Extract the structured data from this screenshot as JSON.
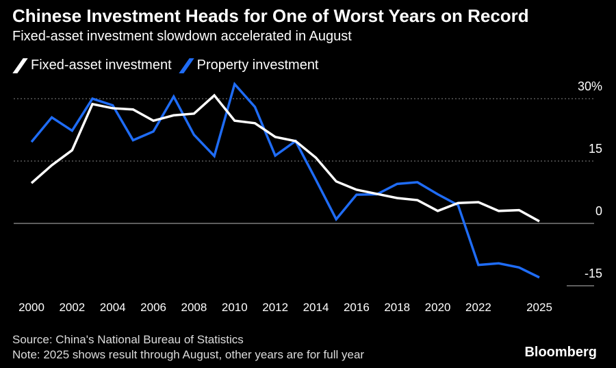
{
  "title": "Chinese Investment Heads for One of Worst Years on Record",
  "subtitle": "Fixed-asset investment slowdown accelerated in August",
  "source": "Source: China's National Bureau of Statistics",
  "note": "Note: 2025 shows result through August, other years are for full year",
  "logo": "Bloomberg",
  "chart_data": {
    "type": "line",
    "title": "Chinese Investment Heads for One of Worst Years on Record",
    "xlabel": "",
    "ylabel": "",
    "ylim": [
      -15,
      30
    ],
    "y_ticks": [
      {
        "v": 30,
        "label": "30%"
      },
      {
        "v": 15,
        "label": "15"
      },
      {
        "v": 0,
        "label": "0"
      },
      {
        "v": -15,
        "label": "-15"
      }
    ],
    "x_ticks": [
      "2000",
      "2002",
      "2004",
      "2006",
      "2008",
      "2010",
      "2012",
      "2014",
      "2016",
      "2018",
      "2020",
      "2022",
      "2025"
    ],
    "x": [
      2000,
      2001,
      2002,
      2003,
      2004,
      2005,
      2006,
      2007,
      2008,
      2009,
      2010,
      2011,
      2012,
      2013,
      2014,
      2015,
      2016,
      2017,
      2018,
      2019,
      2020,
      2021,
      2022,
      2023,
      2024,
      2025
    ],
    "legend_position": "top-left",
    "series": [
      {
        "name": "Fixed-asset investment",
        "color": "#ffffff",
        "values": [
          9.7,
          14.0,
          17.6,
          28.7,
          27.7,
          27.4,
          24.7,
          26.0,
          26.4,
          30.8,
          24.7,
          24.1,
          20.8,
          19.8,
          15.8,
          10.1,
          8.1,
          7.1,
          6.1,
          5.6,
          3.0,
          4.9,
          5.1,
          3.0,
          3.2,
          0.5
        ]
      },
      {
        "name": "Property investment",
        "color": "#1f6cf5",
        "values": [
          19.6,
          25.5,
          22.3,
          30.0,
          28.4,
          20.0,
          22.1,
          30.5,
          21.3,
          16.2,
          33.5,
          28.0,
          16.3,
          19.8,
          10.5,
          1.0,
          6.9,
          7.0,
          9.5,
          9.9,
          7.0,
          4.4,
          -10.0,
          -9.6,
          -10.6,
          -13.0
        ]
      }
    ]
  }
}
